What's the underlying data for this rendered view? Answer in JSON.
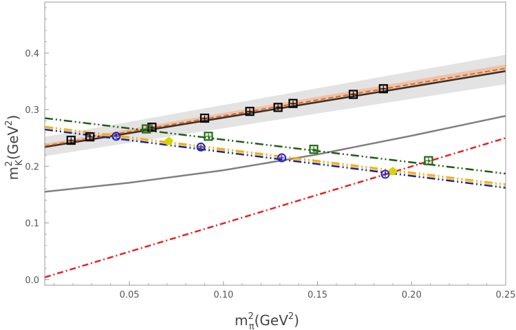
{
  "chart_data": {
    "type": "scatter",
    "title": "",
    "xlabel": {
      "base": "m",
      "sup": "2",
      "sub": "π",
      "rest": "(GeV",
      "rest_sup": "2",
      "close": ")"
    },
    "ylabel": {
      "base": "m",
      "sup": "2",
      "sub": "K",
      "rest": "(GeV",
      "rest_sup": "2",
      "close": ")"
    },
    "xlim": [
      0.005,
      0.25
    ],
    "ylim": [
      -0.01,
      0.49
    ],
    "xticks": [
      0.05,
      0.1,
      0.15,
      0.2,
      0.25
    ],
    "xtick_labels": [
      "0.05",
      "0.10",
      "0.15",
      "0.20",
      "0.25"
    ],
    "yticks": [
      0.0,
      0.1,
      0.2,
      0.3,
      0.4
    ],
    "ytick_labels": [
      "0.0",
      "0.1",
      "0.2",
      "0.3",
      "0.4"
    ],
    "grid": false,
    "legend": "none",
    "colors": {
      "band": "#d9d9d9",
      "orange_band": "#f0b89a",
      "black_fit": "#333333",
      "orange_fit": "#e06a1a",
      "gray_curve": "#808080",
      "red_line": "#e82020",
      "green_line": "#1e5c12",
      "orange_dashdot": "#f5a623",
      "yellow_dashdot": "#e8d000",
      "blue_line": "#1d1fb0",
      "black_pts": "#000000",
      "green_pts": "#1e6b14",
      "blue_pts": "#2222cc",
      "yellow_pts": "#d4d400"
    },
    "bands": [
      {
        "x": [
          0.005,
          0.25
        ],
        "lower": [
          0.218,
          0.345
        ],
        "upper": [
          0.252,
          0.397
        ],
        "color_key": "band"
      },
      {
        "x": [
          0.005,
          0.25
        ],
        "lower": [
          0.232,
          0.366
        ],
        "upper": [
          0.24,
          0.38
        ],
        "color_key": "orange_band"
      }
    ],
    "lines": [
      {
        "x": [
          0.005,
          0.25
        ],
        "y": [
          0.234,
          0.368
        ],
        "style": "solid",
        "color_key": "black_fit",
        "width": 2.5
      },
      {
        "x": [
          0.005,
          0.25
        ],
        "y": [
          0.236,
          0.373
        ],
        "style": "dashed",
        "color_key": "orange_fit",
        "width": 2
      },
      {
        "x": [
          0.005,
          0.05,
          0.1,
          0.15,
          0.2,
          0.25
        ],
        "y": [
          0.155,
          0.171,
          0.193,
          0.221,
          0.254,
          0.289
        ],
        "style": "solid",
        "color_key": "gray_curve",
        "width": 2.5
      },
      {
        "x": [
          0.005,
          0.25
        ],
        "y": [
          0.004,
          0.25
        ],
        "style": "dashdot",
        "color_key": "red_line",
        "width": 2.5
      },
      {
        "x": [
          0.005,
          0.25
        ],
        "y": [
          0.285,
          0.187
        ],
        "style": "dashdotdot",
        "color_key": "green_line",
        "width": 2.5
      },
      {
        "x": [
          0.005,
          0.25
        ],
        "y": [
          0.27,
          0.168
        ],
        "style": "dashdotdot",
        "color_key": "orange_dashdot",
        "width": 2.5
      },
      {
        "x": [
          0.005,
          0.25
        ],
        "y": [
          0.268,
          0.165
        ],
        "style": "dashdotdot",
        "color_key": "yellow_dashdot",
        "width": 1.5
      },
      {
        "x": [
          0.005,
          0.25
        ],
        "y": [
          0.265,
          0.162
        ],
        "style": "dashdotdot",
        "color_key": "blue_line",
        "width": 2.5
      }
    ],
    "series": [
      {
        "marker": "square",
        "color_key": "black_pts",
        "x": [
          0.019,
          0.029,
          0.062,
          0.09,
          0.114,
          0.129,
          0.137,
          0.169,
          0.185
        ],
        "y": [
          0.246,
          0.252,
          0.269,
          0.285,
          0.297,
          0.304,
          0.311,
          0.327,
          0.337
        ]
      },
      {
        "marker": "square",
        "color_key": "green_pts",
        "x": [
          0.059,
          0.092,
          0.148,
          0.209
        ],
        "y": [
          0.266,
          0.253,
          0.23,
          0.21
        ]
      },
      {
        "marker": "circle",
        "color_key": "blue_pts",
        "x": [
          0.043,
          0.088,
          0.131,
          0.186
        ],
        "y": [
          0.253,
          0.234,
          0.215,
          0.186
        ]
      },
      {
        "marker": "pentagon",
        "color_key": "yellow_pts",
        "x": [
          0.071,
          0.19
        ],
        "y": [
          0.244,
          0.191
        ]
      }
    ]
  }
}
